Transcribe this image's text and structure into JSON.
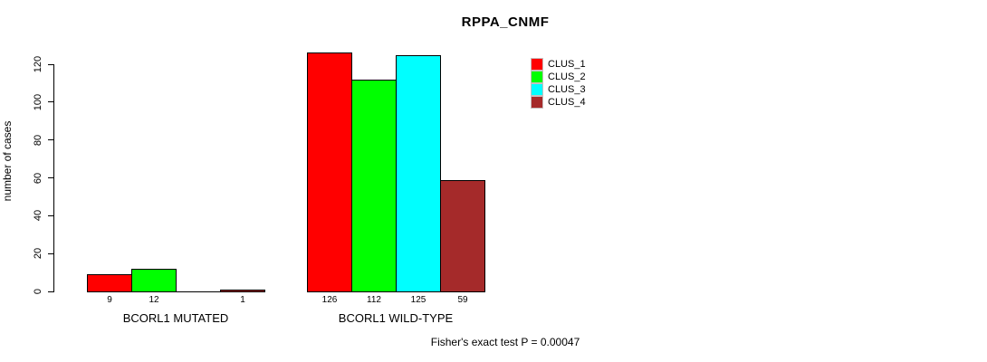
{
  "title": "RPPA_CNMF",
  "ylabel": "number of cases",
  "footer": "Fisher's exact test P = 0.00047",
  "legend": [
    {
      "label": "CLUS_1",
      "color": "#ff0000"
    },
    {
      "label": "CLUS_2",
      "color": "#00ff00"
    },
    {
      "label": "CLUS_3",
      "color": "#00ffff"
    },
    {
      "label": "CLUS_4",
      "color": "#a52a2a"
    }
  ],
  "chart_data": {
    "type": "bar",
    "title": "RPPA_CNMF",
    "ylabel": "number of cases",
    "annotation": "Fisher's exact test P = 0.00047",
    "series": [
      "CLUS_1",
      "CLUS_2",
      "CLUS_3",
      "CLUS_4"
    ],
    "colors": [
      "#ff0000",
      "#00ff00",
      "#00ffff",
      "#a52a2a"
    ],
    "groups": [
      {
        "label": "BCORL1 MUTATED",
        "values": [
          9,
          12,
          0,
          1
        ]
      },
      {
        "label": "BCORL1 WILD-TYPE",
        "values": [
          126,
          112,
          125,
          59
        ]
      }
    ],
    "bar_value_labels": [
      [
        "9",
        "12",
        "",
        "1"
      ],
      [
        "126",
        "112",
        "125",
        "59"
      ]
    ],
    "yticks": [
      0,
      20,
      40,
      60,
      80,
      100,
      120
    ],
    "ylim": [
      0,
      130
    ],
    "grid": false,
    "legend_position": "top-right",
    "background": "#ffffff"
  }
}
